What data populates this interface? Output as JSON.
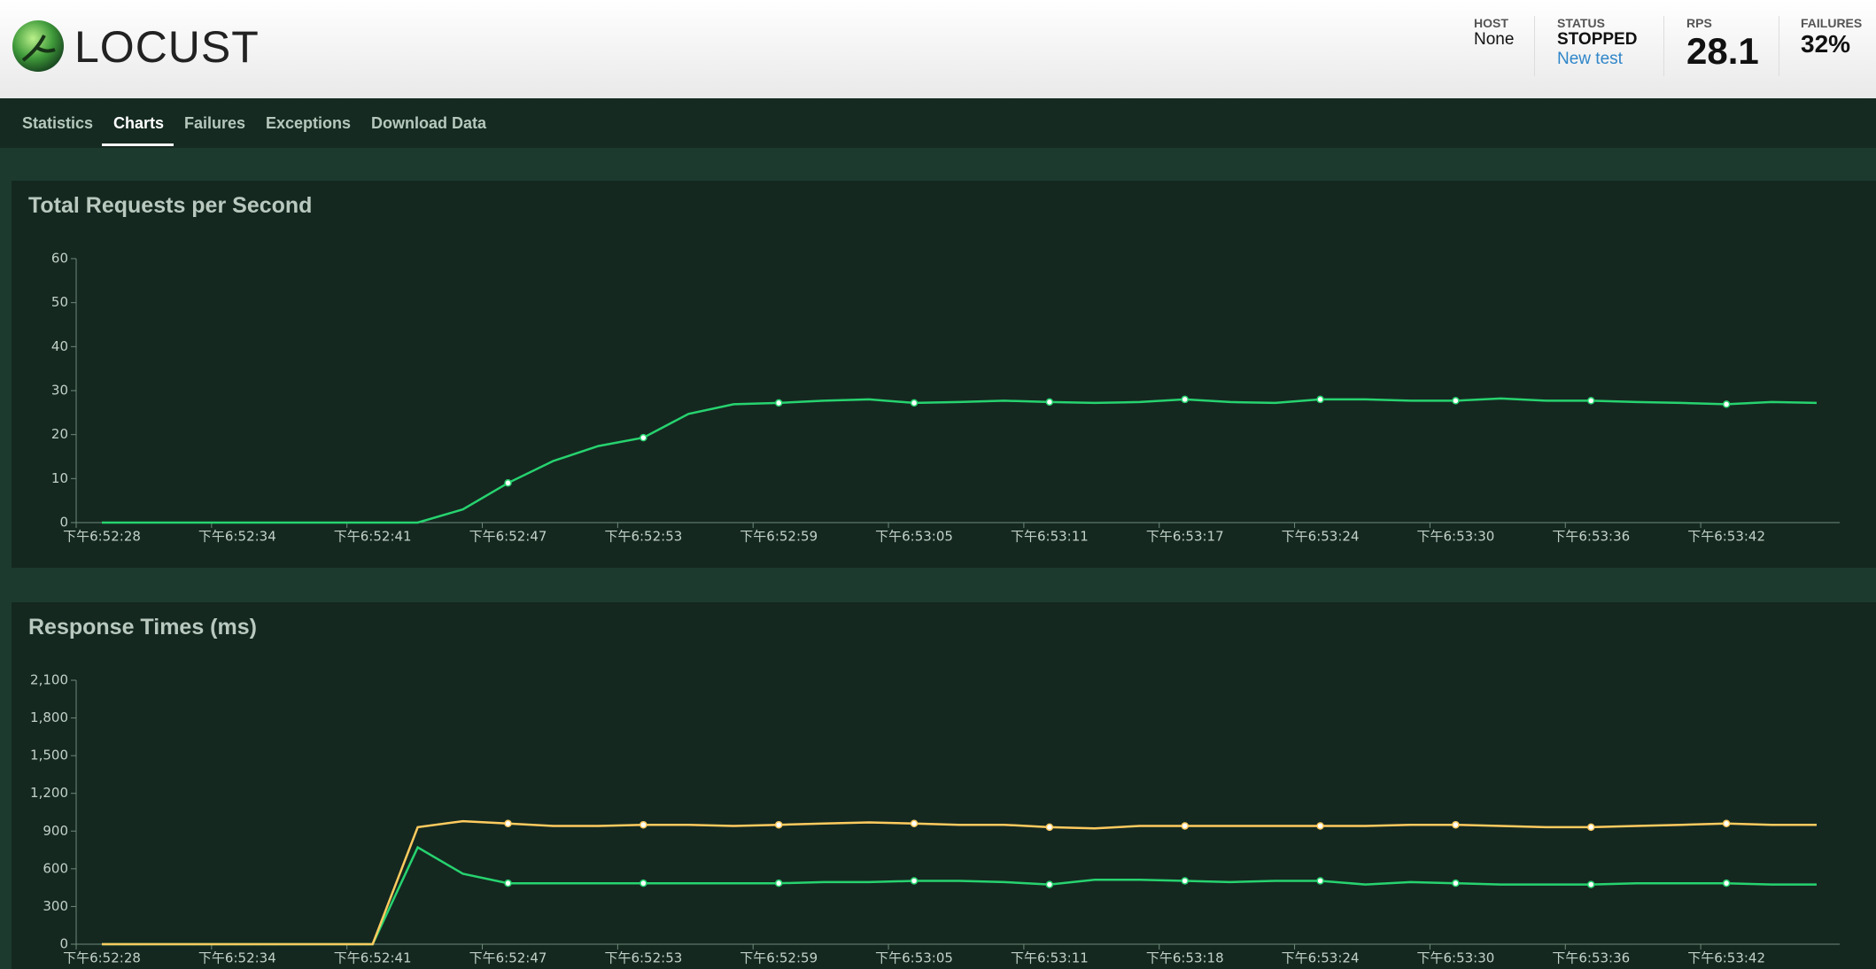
{
  "header": {
    "logo": "LOCUST",
    "stats": [
      {
        "label": "HOST",
        "value": "None"
      },
      {
        "label": "STATUS",
        "value": "STOPPED",
        "link": "New test"
      },
      {
        "label": "RPS",
        "value": "28.1"
      },
      {
        "label": "FAILURES",
        "value": "32%"
      }
    ]
  },
  "nav": {
    "tabs": [
      "Statistics",
      "Charts",
      "Failures",
      "Exceptions",
      "Download Data"
    ]
  },
  "chart_data": [
    {
      "type": "line",
      "title": "Total Requests per Second",
      "categories": [
        "下午6:52:28",
        null,
        null,
        "下午6:52:34",
        null,
        null,
        "下午6:52:41",
        null,
        null,
        "下午6:52:47",
        null,
        null,
        "下午6:52:53",
        null,
        null,
        "下午6:52:59",
        null,
        null,
        "下午6:53:05",
        null,
        null,
        "下午6:53:11",
        null,
        null,
        "下午6:53:17",
        null,
        null,
        "下午6:53:24",
        null,
        null,
        "下午6:53:30",
        null,
        null,
        "下午6:53:36",
        null,
        null,
        "下午6:53:42",
        null,
        null
      ],
      "series": [
        {
          "color": "#27d36f",
          "values": [
            0,
            0,
            0,
            0,
            0,
            0,
            0,
            0,
            3,
            9,
            14,
            17.4,
            19.3,
            24.7,
            26.9,
            27.2,
            27.7,
            28,
            27.2,
            27.4,
            27.7,
            27.4,
            27.2,
            27.4,
            28,
            27.4,
            27.2,
            28,
            28,
            27.7,
            27.7,
            28.2,
            27.7,
            27.7,
            27.4,
            27.2,
            26.9,
            27.4,
            27.2
          ]
        }
      ],
      "ylim": [
        0,
        60
      ],
      "yticks": [
        0,
        10,
        20,
        30,
        40,
        50,
        60
      ]
    },
    {
      "type": "line",
      "title": "Response Times (ms)",
      "categories": [
        "下午6:52:28",
        null,
        null,
        "下午6:52:34",
        null,
        null,
        "下午6:52:41",
        null,
        null,
        "下午6:52:47",
        null,
        null,
        "下午6:52:53",
        null,
        null,
        "下午6:52:59",
        null,
        null,
        "下午6:53:05",
        null,
        null,
        "下午6:53:11",
        null,
        null,
        "下午6:53:18",
        null,
        null,
        "下午6:53:24",
        null,
        null,
        "下午6:53:30",
        null,
        null,
        "下午6:53:36",
        null,
        null,
        "下午6:53:42",
        null,
        null
      ],
      "series": [
        {
          "color": "#27d36f",
          "values": [
            0,
            0,
            0,
            0,
            0,
            0,
            0,
            770,
            560,
            485,
            485,
            485,
            485,
            485,
            485,
            485,
            494,
            494,
            504,
            504,
            494,
            475,
            513,
            513,
            504,
            494,
            504,
            504,
            475,
            494,
            485,
            475,
            475,
            475,
            485,
            485,
            485,
            475,
            475
          ]
        },
        {
          "color": "#ffcb5f",
          "values": [
            0,
            0,
            0,
            0,
            0,
            0,
            0,
            931,
            979,
            960,
            941,
            941,
            950,
            950,
            941,
            950,
            960,
            969,
            960,
            950,
            950,
            931,
            922,
            941,
            941,
            941,
            941,
            941,
            941,
            950,
            950,
            941,
            931,
            931,
            941,
            950,
            960,
            950,
            950
          ]
        }
      ],
      "ylim": [
        0,
        2100
      ],
      "yticks": [
        0,
        300,
        600,
        900,
        {
          "value": 1200,
          "label": "1,200"
        },
        {
          "value": 1500,
          "label": "1,500"
        },
        {
          "value": 1800,
          "label": "1,800"
        },
        {
          "value": 2100,
          "label": "2,100"
        }
      ]
    }
  ]
}
